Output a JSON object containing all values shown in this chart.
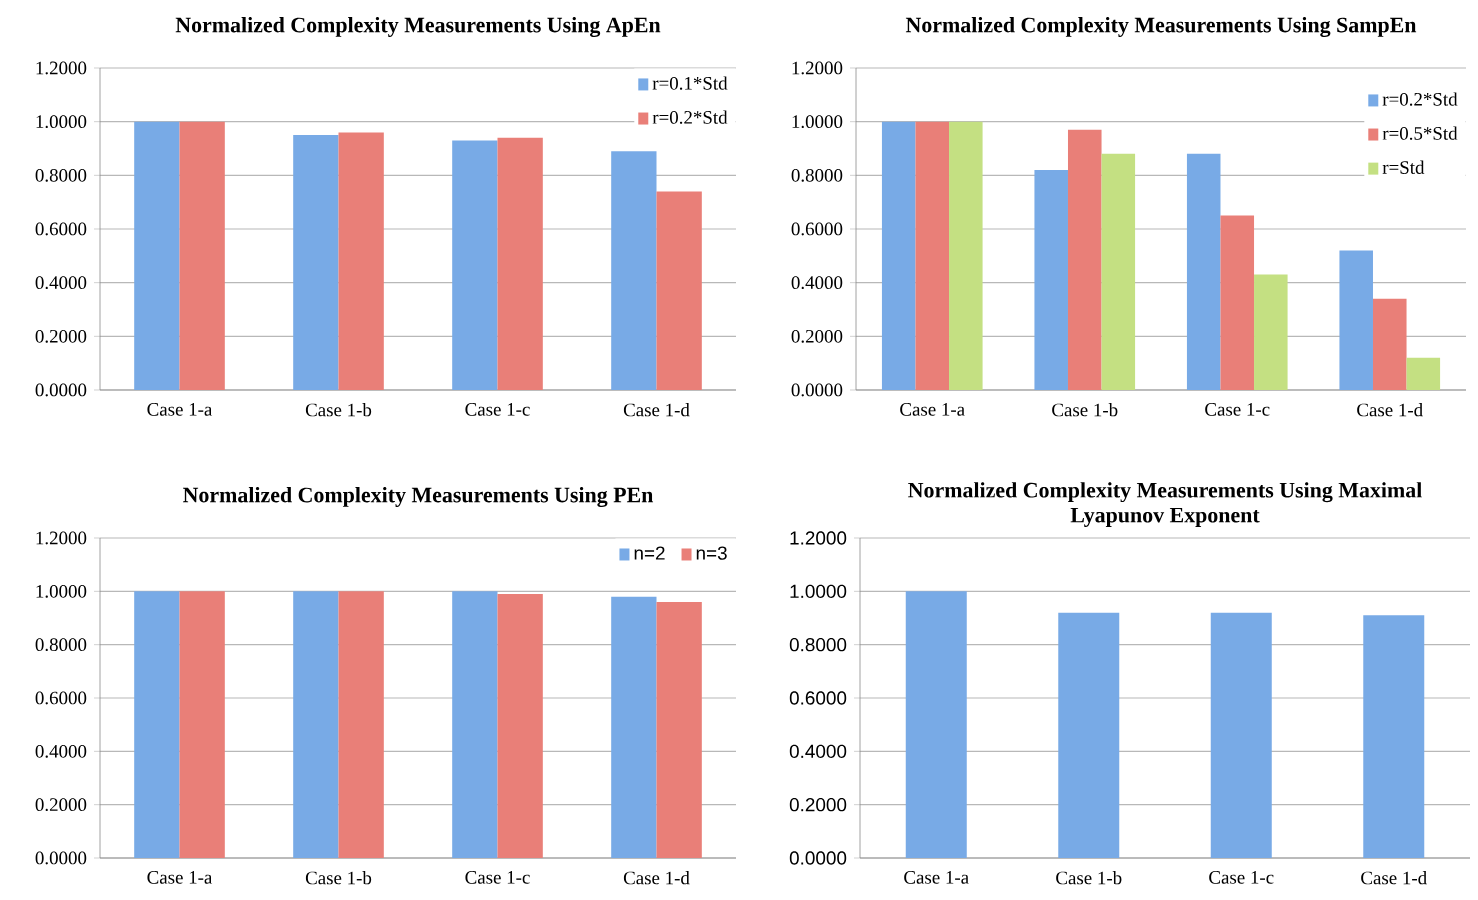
{
  "chart_data": [
    {
      "type": "bar",
      "title": "Normalized Complexity Measurements Using ApEn",
      "categories": [
        "Case 1-a",
        "Case 1-b",
        "Case 1-c",
        "Case 1-d"
      ],
      "series": [
        {
          "name": "r=0.1*Std",
          "color": "#78aae6",
          "values": [
            1.0,
            0.95,
            0.93,
            0.89
          ]
        },
        {
          "name": "r=0.2*Std",
          "color": "#e97f78",
          "values": [
            1.0,
            0.96,
            0.94,
            0.74
          ]
        }
      ],
      "ylim": [
        0,
        1.2
      ],
      "yticks": [
        {
          "value": 0,
          "label": "0.0000"
        },
        {
          "value": 0.2,
          "label": "0.2000"
        },
        {
          "value": 0.4,
          "label": "0.4000"
        },
        {
          "value": 0.6,
          "label": "0.6000"
        },
        {
          "value": 0.8,
          "label": "0.8000"
        },
        {
          "value": 1.0,
          "label": "1.0000"
        },
        {
          "value": 1.2,
          "label": "1.2000"
        }
      ],
      "grid": "y",
      "legend": "top right"
    },
    {
      "type": "bar",
      "title": "Normalized Complexity Measurements Using SampEn",
      "categories": [
        "Case 1-a",
        "Case 1-b",
        "Case 1-c",
        "Case 1-d"
      ],
      "series": [
        {
          "name": "r=0.2*Std",
          "color": "#78aae6",
          "values": [
            1.0,
            0.82,
            0.88,
            0.52
          ]
        },
        {
          "name": "r=0.5*Std",
          "color": "#e97f78",
          "values": [
            1.0,
            0.97,
            0.65,
            0.34
          ]
        },
        {
          "name": "r=Std",
          "color": "#c4e082",
          "values": [
            1.0,
            0.88,
            0.43,
            0.12
          ]
        }
      ],
      "ylim": [
        0,
        1.2
      ],
      "yticks": [
        {
          "value": 0,
          "label": "0.0000"
        },
        {
          "value": 0.2,
          "label": "0.2000"
        },
        {
          "value": 0.4,
          "label": "0.4000"
        },
        {
          "value": 0.6,
          "label": "0.6000"
        },
        {
          "value": 0.8,
          "label": "0.8000"
        },
        {
          "value": 1.0,
          "label": "1.0000"
        },
        {
          "value": 1.2,
          "label": "1.2000"
        }
      ],
      "grid": "y",
      "legend": "top right"
    },
    {
      "type": "bar",
      "title": "Normalized Complexity Measurements Using PEn",
      "categories": [
        "Case 1-a",
        "Case 1-b",
        "Case 1-c",
        "Case 1-d"
      ],
      "series": [
        {
          "name": "n=2",
          "color": "#78aae6",
          "values": [
            1.0,
            1.0,
            1.0,
            0.98
          ]
        },
        {
          "name": "n=3",
          "color": "#e97f78",
          "values": [
            1.0,
            1.0,
            0.99,
            0.96
          ]
        }
      ],
      "ylim": [
        0,
        1.2
      ],
      "yticks": [
        {
          "value": 0,
          "label": "0.0000"
        },
        {
          "value": 0.2,
          "label": "0.2000"
        },
        {
          "value": 0.4,
          "label": "0.4000"
        },
        {
          "value": 0.6,
          "label": "0.6000"
        },
        {
          "value": 0.8,
          "label": "0.8000"
        },
        {
          "value": 1.0,
          "label": "1.0000"
        },
        {
          "value": 1.2,
          "label": "1.2000"
        }
      ],
      "grid": "y",
      "legend": "top right"
    },
    {
      "type": "bar",
      "title": "Normalized Complexity Measurements Using Maximal Lyapunov Exponent",
      "categories": [
        "Case 1-a",
        "Case 1-b",
        "Case 1-c",
        "Case 1-d"
      ],
      "series": [
        {
          "color": "#78aae6",
          "values": [
            1.0,
            0.92,
            0.92,
            0.91
          ]
        }
      ],
      "ylim": [
        0,
        1.2
      ],
      "yticks": [
        {
          "value": 0,
          "label": "0.0000"
        },
        {
          "value": 0.2,
          "label": "0.2000"
        },
        {
          "value": 0.4,
          "label": "0.4000"
        },
        {
          "value": 0.6,
          "label": "0.6000"
        },
        {
          "value": 0.8,
          "label": "0.8000"
        },
        {
          "value": 1.0,
          "label": "1.0000"
        },
        {
          "value": 1.2,
          "label": "1.2000"
        }
      ],
      "grid": "y"
    }
  ]
}
